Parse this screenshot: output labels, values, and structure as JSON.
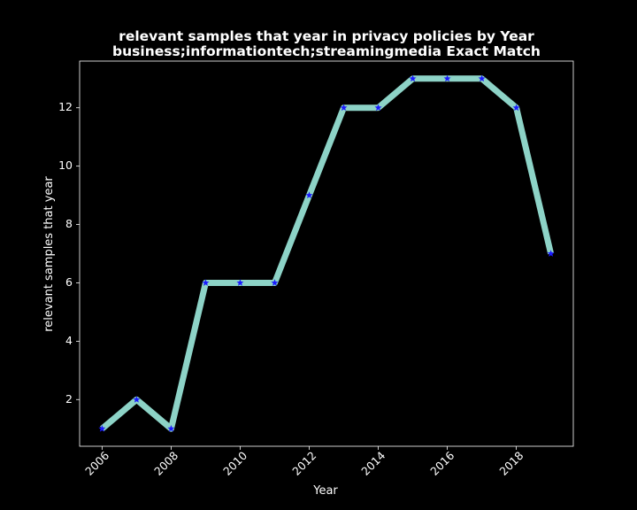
{
  "chart_data": {
    "type": "line",
    "title_lines": [
      "relevant samples that year in privacy policies by Year",
      "business;informationtech;streamingmedia Exact Match"
    ],
    "xlabel": "Year",
    "ylabel": "relevant samples that year",
    "x": [
      2006,
      2007,
      2008,
      2009,
      2010,
      2011,
      2012,
      2013,
      2014,
      2015,
      2016,
      2017,
      2018,
      2019
    ],
    "values": [
      1,
      2,
      1,
      6,
      6,
      6,
      9,
      12,
      12,
      13,
      13,
      13,
      12,
      7
    ],
    "xlim": [
      2005.35,
      2019.65
    ],
    "ylim": [
      0.4,
      13.6
    ],
    "x_ticks": [
      "2006",
      "2008",
      "2010",
      "2012",
      "2014",
      "2016",
      "2018"
    ],
    "y_ticks": [
      "2",
      "4",
      "6",
      "8",
      "10",
      "12"
    ],
    "grid": false,
    "colors": {
      "background": "#000000",
      "line": "#8dd3c7",
      "marker": "#1a1aff",
      "axes": "#ffffff",
      "text": "#ffffff"
    },
    "marker": "star"
  }
}
